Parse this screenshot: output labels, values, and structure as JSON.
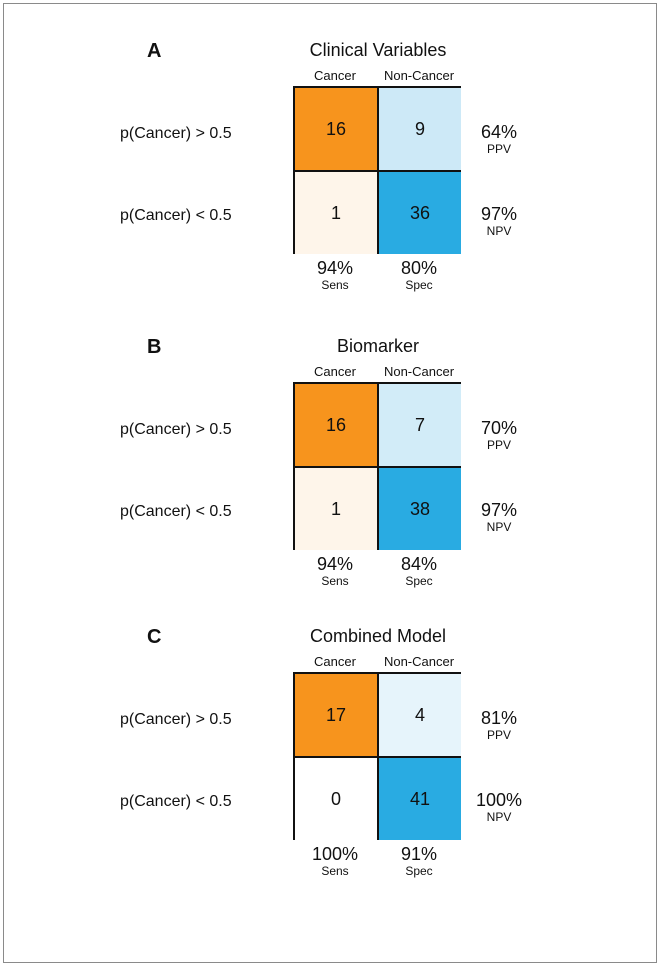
{
  "chart_data": [
    {
      "type": "table",
      "panel_label": "A",
      "title": "Clinical Variables",
      "columns": [
        "Cancer",
        "Non-Cancer"
      ],
      "rows": [
        "p(Cancer) > 0.5",
        "p(Cancer) < 0.5"
      ],
      "values": [
        [
          16,
          9
        ],
        [
          1,
          36
        ]
      ],
      "cell_colors": [
        [
          "#f7941d",
          "#cde9f7"
        ],
        [
          "#fef5ea",
          "#29abe2"
        ]
      ],
      "ppv": "64%",
      "ppv_label": "PPV",
      "npv": "97%",
      "npv_label": "NPV",
      "sens": "94%",
      "sens_label": "Sens",
      "spec": "80%",
      "spec_label": "Spec"
    },
    {
      "type": "table",
      "panel_label": "B",
      "title": "Biomarker",
      "columns": [
        "Cancer",
        "Non-Cancer"
      ],
      "rows": [
        "p(Cancer) > 0.5",
        "p(Cancer) < 0.5"
      ],
      "values": [
        [
          16,
          7
        ],
        [
          1,
          38
        ]
      ],
      "cell_colors": [
        [
          "#f7941d",
          "#d2ecf8"
        ],
        [
          "#fef5ea",
          "#29abe2"
        ]
      ],
      "ppv": "70%",
      "ppv_label": "PPV",
      "npv": "97%",
      "npv_label": "NPV",
      "sens": "94%",
      "sens_label": "Sens",
      "spec": "84%",
      "spec_label": "Spec"
    },
    {
      "type": "table",
      "panel_label": "C",
      "title": "Combined Model",
      "columns": [
        "Cancer",
        "Non-Cancer"
      ],
      "rows": [
        "p(Cancer) > 0.5",
        "p(Cancer) < 0.5"
      ],
      "values": [
        [
          17,
          4
        ],
        [
          0,
          41
        ]
      ],
      "cell_colors": [
        [
          "#f7941d",
          "#e6f4fb"
        ],
        [
          "#ffffff",
          "#29abe2"
        ]
      ],
      "ppv": "81%",
      "ppv_label": "PPV",
      "npv": "100%",
      "npv_label": "NPV",
      "sens": "100%",
      "sens_label": "Sens",
      "spec": "91%",
      "spec_label": "Spec"
    }
  ]
}
